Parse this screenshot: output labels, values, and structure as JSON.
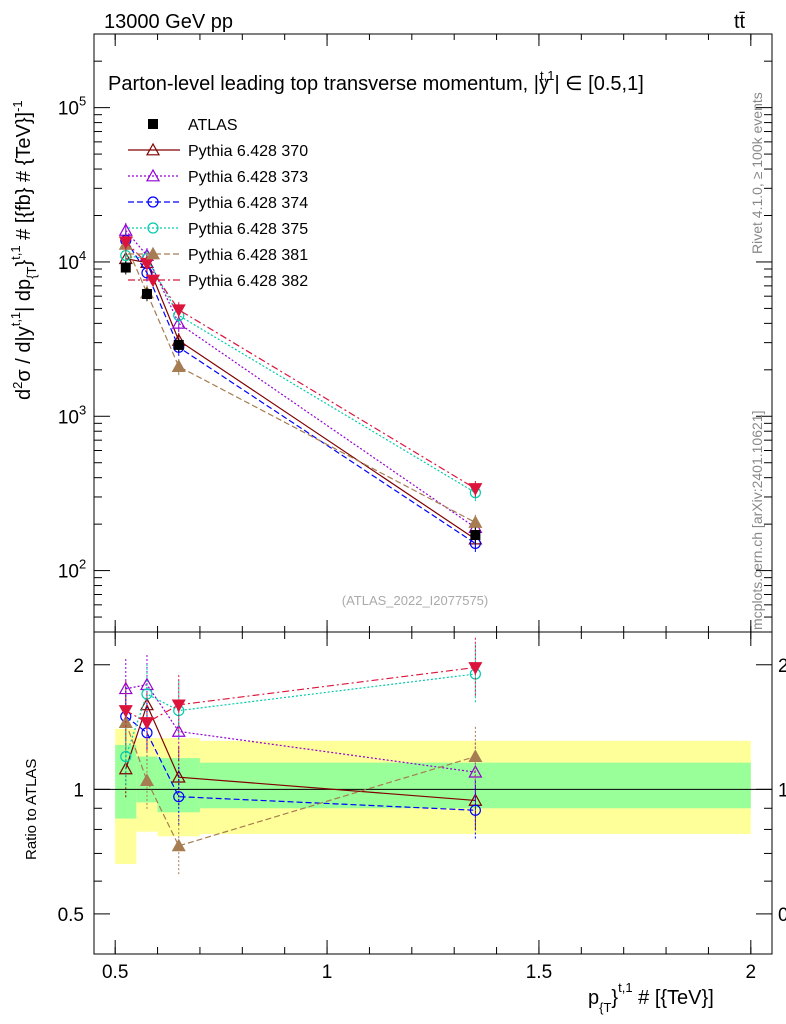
{
  "header": {
    "left": "13000 GeV pp",
    "right": "tt̄"
  },
  "side_labels": {
    "rivet": "Rivet 4.1.0, ≥ 100k events",
    "mcplots": "mcplots.cern.ch [arXiv:2401.10621]"
  },
  "watermark": "(ATLAS_2022_I2077575)",
  "chart_data": {
    "type": "scatter",
    "title": "Parton-level leading top transverse momentum, |ŷ^{t,1}| ∈ [0.5,1]",
    "title_parts": {
      "prefix": "Parton-level leading top transverse momentum, |",
      "sym": "y",
      "sup": "t,1",
      "suffix": "| ∈ [0.5,1]"
    },
    "ylabel": "d²σ / d|y^{t,1}| dp_{T}^{t,1} # [{fb} # {TeV}]^{-1}",
    "ylabel_parts": {
      "a": "d",
      "a_sup": "2",
      "b": "σ / d|y",
      "b_sup": "t,1",
      "c": "| dp",
      "c_sub": "{T",
      "c2": "}",
      "c_sup": "t,1",
      "d": " # [{fb} # {TeV}]",
      "d_sup": "-1"
    },
    "xlabel": "p_{T}^{t,1} # [{TeV}]",
    "xlabel_parts": {
      "a": "p",
      "a_sub": "{T",
      "b": "}",
      "b_sup": "t,1",
      "c": " # [{TeV}]"
    },
    "ratio_ylabel": "Ratio to ATLAS",
    "xlim": [
      0.45,
      2.05
    ],
    "ylim": [
      40,
      300000
    ],
    "ratio_ylim": [
      0.4,
      2.4
    ],
    "x_ticks": [
      {
        "value": 0.5,
        "label": "0.5"
      },
      {
        "value": 1.0,
        "label": "1"
      },
      {
        "value": 1.5,
        "label": "1.5"
      },
      {
        "value": 2.0,
        "label": "2"
      }
    ],
    "y_ticks": [
      {
        "value": 100,
        "base": "10",
        "exp": "2"
      },
      {
        "value": 1000,
        "base": "10",
        "exp": "3"
      },
      {
        "value": 10000,
        "base": "10",
        "exp": "4"
      },
      {
        "value": 100000,
        "base": "10",
        "exp": "5"
      }
    ],
    "ratio_ticks": [
      {
        "value": 0.5,
        "label": "0.5"
      },
      {
        "value": 1,
        "label": "1"
      },
      {
        "value": 2,
        "label": "2"
      }
    ],
    "x": [
      0.525,
      0.575,
      0.65,
      1.35
    ],
    "data": {
      "name": "ATLAS",
      "values": [
        9200,
        6200,
        2900,
        170
      ],
      "err": [
        900,
        600,
        300,
        20
      ]
    },
    "uncertainty_bands": {
      "edges": [
        0.5,
        0.55,
        0.6,
        0.7,
        2.0
      ],
      "inner": [
        [
          0.85,
          1.28
        ],
        [
          0.93,
          1.2
        ],
        [
          0.88,
          1.19
        ],
        [
          0.9,
          1.16
        ]
      ],
      "outer": [
        [
          0.66,
          1.4
        ],
        [
          0.79,
          1.33
        ],
        [
          0.77,
          1.33
        ],
        [
          0.78,
          1.31
        ]
      ]
    },
    "series": [
      {
        "name": "Pythia 6.428 370",
        "color": "#800000",
        "dash": "",
        "marker": "tri-open",
        "values": [
          10500,
          9900,
          3100,
          160
        ],
        "ratio": [
          1.12,
          1.6,
          1.07,
          0.94
        ]
      },
      {
        "name": "Pythia 6.428 373",
        "color": "#9400d3",
        "dash": "2,2",
        "marker": "tri-open",
        "values": [
          16000,
          11000,
          4000,
          190
        ],
        "ratio": [
          1.75,
          1.79,
          1.38,
          1.1
        ]
      },
      {
        "name": "Pythia 6.428 374",
        "color": "#0000ff",
        "dash": "6,3",
        "marker": "circle-open",
        "values": [
          13800,
          8500,
          2800,
          150
        ],
        "ratio": [
          1.5,
          1.37,
          0.96,
          0.89
        ]
      },
      {
        "name": "Pythia 6.428 375",
        "color": "#00ccaa",
        "dash": "2,2",
        "marker": "circle-open",
        "values": [
          11000,
          10500,
          4500,
          320
        ],
        "ratio": [
          1.2,
          1.7,
          1.55,
          1.9
        ]
      },
      {
        "name": "Pythia 6.428 381",
        "color": "#a67c52",
        "dash": "6,3",
        "marker": "tri-filled",
        "values": [
          13000,
          6300,
          2100,
          205
        ],
        "ratio": [
          1.45,
          1.05,
          0.73,
          1.2
        ]
      },
      {
        "name": "Pythia 6.428 382",
        "color": "#dc143c",
        "dash": "7,3,2,3",
        "marker": "tri-down-filled",
        "values": [
          13500,
          9800,
          4900,
          340
        ],
        "ratio": [
          1.55,
          1.45,
          1.6,
          1.97
        ]
      }
    ],
    "legend_position": "top-left"
  }
}
